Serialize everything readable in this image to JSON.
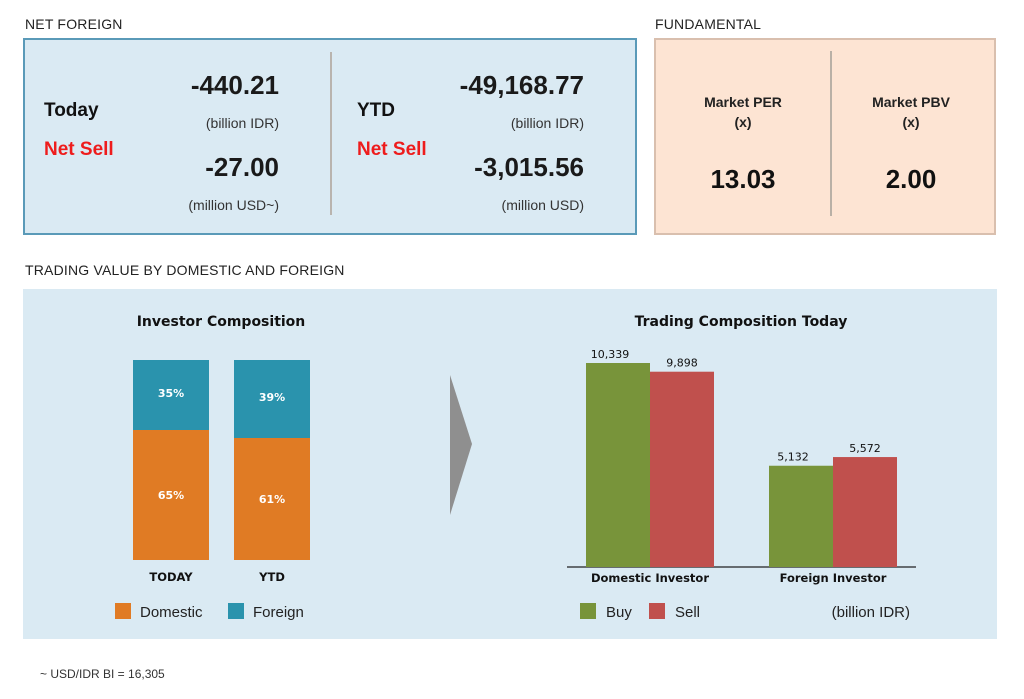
{
  "net_foreign": {
    "section_label": "NET FOREIGN",
    "today": {
      "label": "Today",
      "status": "Net Sell",
      "idr_value": "-440.21",
      "idr_unit": "(billion IDR)",
      "usd_value": "-27.00",
      "usd_unit": "(million USD~)"
    },
    "ytd": {
      "label": "YTD",
      "status": "Net Sell",
      "idr_value": "-49,168.77",
      "idr_unit": "(billion IDR)",
      "usd_value": "-3,015.56",
      "usd_unit": "(million USD)"
    }
  },
  "fundamental": {
    "section_label": "FUNDAMENTAL",
    "per": {
      "label": "Market PER",
      "unit": "(x)",
      "value": "13.03"
    },
    "pbv": {
      "label": "Market PBV",
      "unit": "(x)",
      "value": "2.00"
    }
  },
  "trading": {
    "section_label": "TRADING VALUE BY DOMESTIC AND FOREIGN"
  },
  "footnote": "~ USD/IDR BI = 16,305",
  "colors": {
    "domestic": "#e07b24",
    "foreign": "#2a93ad",
    "buy": "#78943a",
    "sell": "#c0504d",
    "net_sell": "#ee1c1c",
    "arrow": "#8f8f8f"
  },
  "chart_data": [
    {
      "type": "bar",
      "stacked": true,
      "percent": true,
      "title": "Investor Composition",
      "categories": [
        "TODAY",
        "YTD"
      ],
      "series": [
        {
          "name": "Domestic",
          "values": [
            65,
            61
          ],
          "labels": [
            "65%",
            "61%"
          ]
        },
        {
          "name": "Foreign",
          "values": [
            35,
            39
          ],
          "labels": [
            "35%",
            "39%"
          ]
        }
      ],
      "ylim": [
        0,
        100
      ],
      "legend": "bottom",
      "grid": false
    },
    {
      "type": "bar",
      "title": "Trading Composition Today",
      "categories": [
        "Domestic Investor",
        "Foreign Investor"
      ],
      "series": [
        {
          "name": "Buy",
          "values": [
            10339,
            5132
          ],
          "labels": [
            "10,339",
            "5,132"
          ]
        },
        {
          "name": "Sell",
          "values": [
            9898,
            5572
          ],
          "labels": [
            "9,898",
            "5,572"
          ]
        }
      ],
      "unit_note": "(billion IDR)",
      "ylim": [
        0,
        10339
      ],
      "legend": "bottom",
      "grid": false
    }
  ]
}
